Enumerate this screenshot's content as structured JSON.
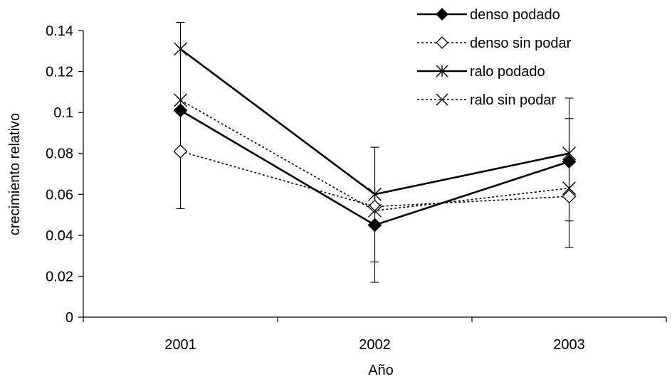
{
  "chart_data": {
    "type": "line",
    "xlabel": "Año",
    "ylabel": "crecimiento relativo",
    "categories": [
      "2001",
      "2002",
      "2003"
    ],
    "ylim": [
      0,
      0.14
    ],
    "yticks": [
      "0",
      "0.02",
      "0.04",
      "0.06",
      "0.08",
      "0.1",
      "0.12",
      "0.14"
    ],
    "grid": false,
    "legend_position": "top-right",
    "series": [
      {
        "name": "denso podado",
        "values": [
          0.101,
          0.045,
          0.076
        ],
        "marker": "diamond-filled",
        "line": "solid",
        "color": "#000000",
        "error_low": [
          0.053,
          0.027,
          0.047
        ],
        "error_high": [
          0.144,
          0.083,
          0.097
        ]
      },
      {
        "name": "denso sin podar",
        "values": [
          0.081,
          0.054,
          0.059
        ],
        "marker": "diamond-open",
        "line": "dotted",
        "color": "#000000"
      },
      {
        "name": "ralo podado",
        "values": [
          0.131,
          0.06,
          0.08
        ],
        "marker": "asterisk",
        "line": "solid",
        "color": "#000000",
        "error_low": [
          0.131,
          0.017,
          0.034
        ],
        "error_high": [
          0.131,
          0.083,
          0.107
        ]
      },
      {
        "name": "ralo sin podar",
        "values": [
          0.106,
          0.052,
          0.063
        ],
        "marker": "x",
        "line": "dotted",
        "color": "#000000"
      }
    ]
  }
}
